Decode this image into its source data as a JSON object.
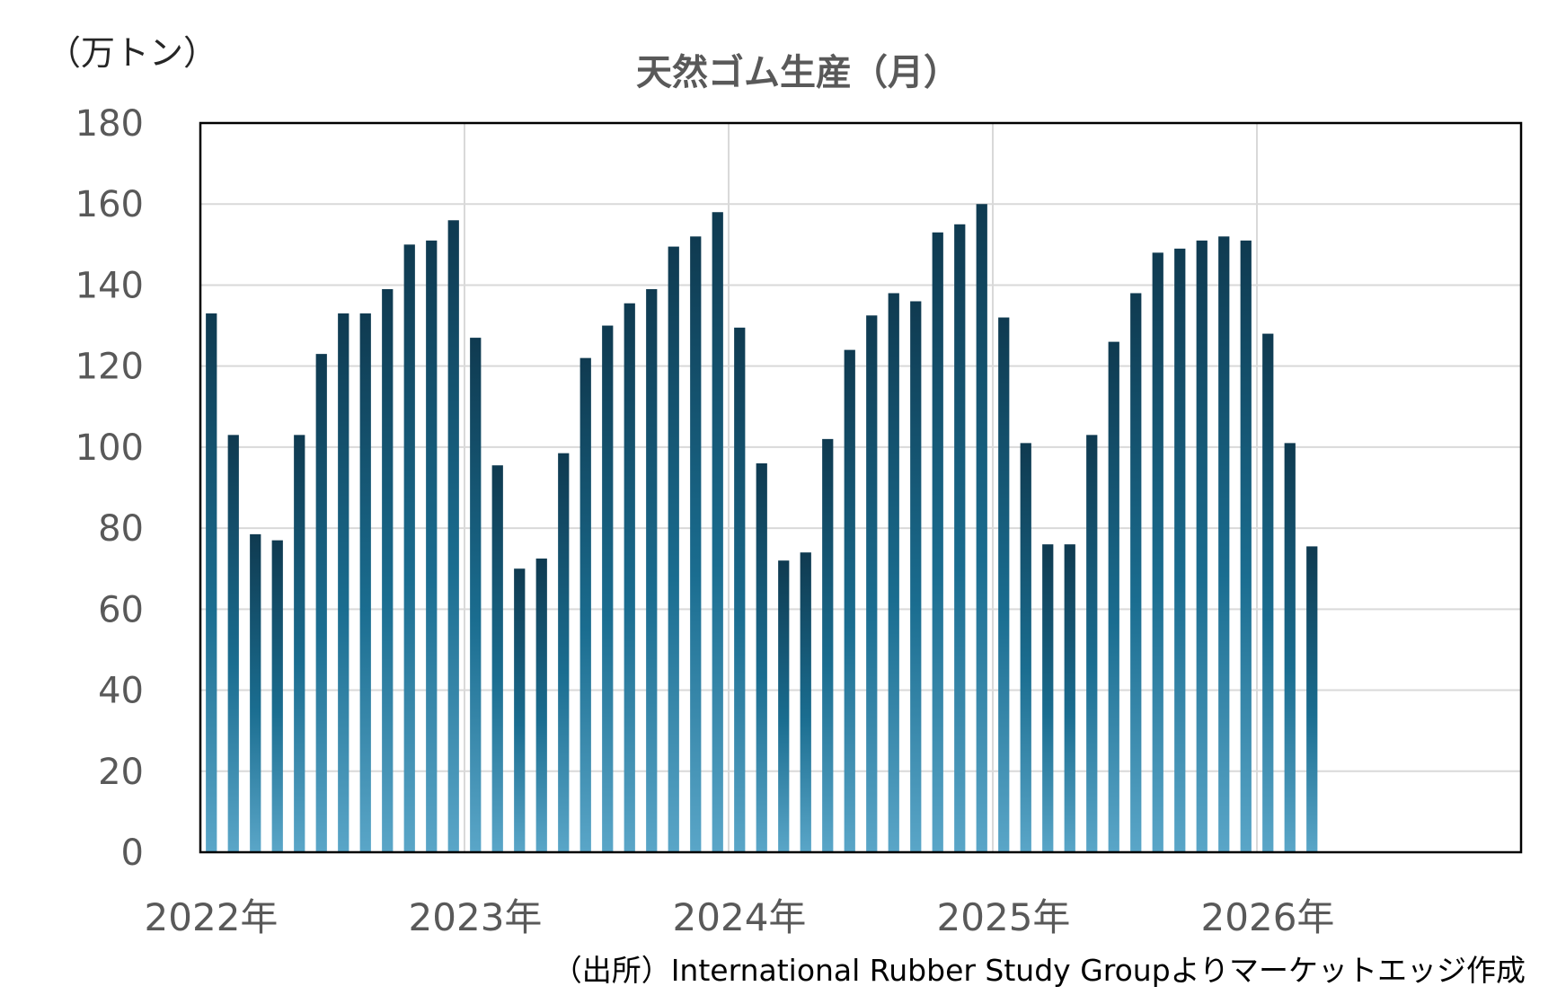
{
  "chart_data": {
    "type": "bar",
    "title": "天然ゴム生産（月）",
    "unit_label": "（万トン）",
    "source": "（出所）International Rubber Study Groupよりマーケットエッジ作成",
    "ylim": [
      0,
      180
    ],
    "yticks": [
      "0",
      "20",
      "40",
      "60",
      "80",
      "100",
      "120",
      "140",
      "160",
      "180"
    ],
    "xticks": [
      "2022年",
      "2023年",
      "2024年",
      "2025年",
      "2026年"
    ],
    "x_range_months": 60,
    "grid": true,
    "legend": "none",
    "colors": {
      "bar_top": "#0f3a50",
      "bar_mid": "#1a6d90",
      "bar_bottom": "#5aa6c8",
      "grid": "#d9d9d9",
      "frame": "#000000"
    },
    "series": [
      {
        "values": [
          133,
          103,
          78.5,
          77,
          103,
          123,
          133,
          133,
          139,
          150,
          151,
          156,
          127,
          95.5,
          70,
          72.5,
          98.5,
          122,
          130,
          135.5,
          139,
          149.5,
          152,
          158,
          129.5,
          96,
          72,
          74,
          102,
          124,
          132.5,
          138,
          136,
          153,
          155,
          160,
          132,
          101,
          76,
          76,
          103,
          126,
          138,
          148,
          149,
          151,
          152,
          151,
          128,
          101,
          75.5
        ]
      }
    ]
  }
}
